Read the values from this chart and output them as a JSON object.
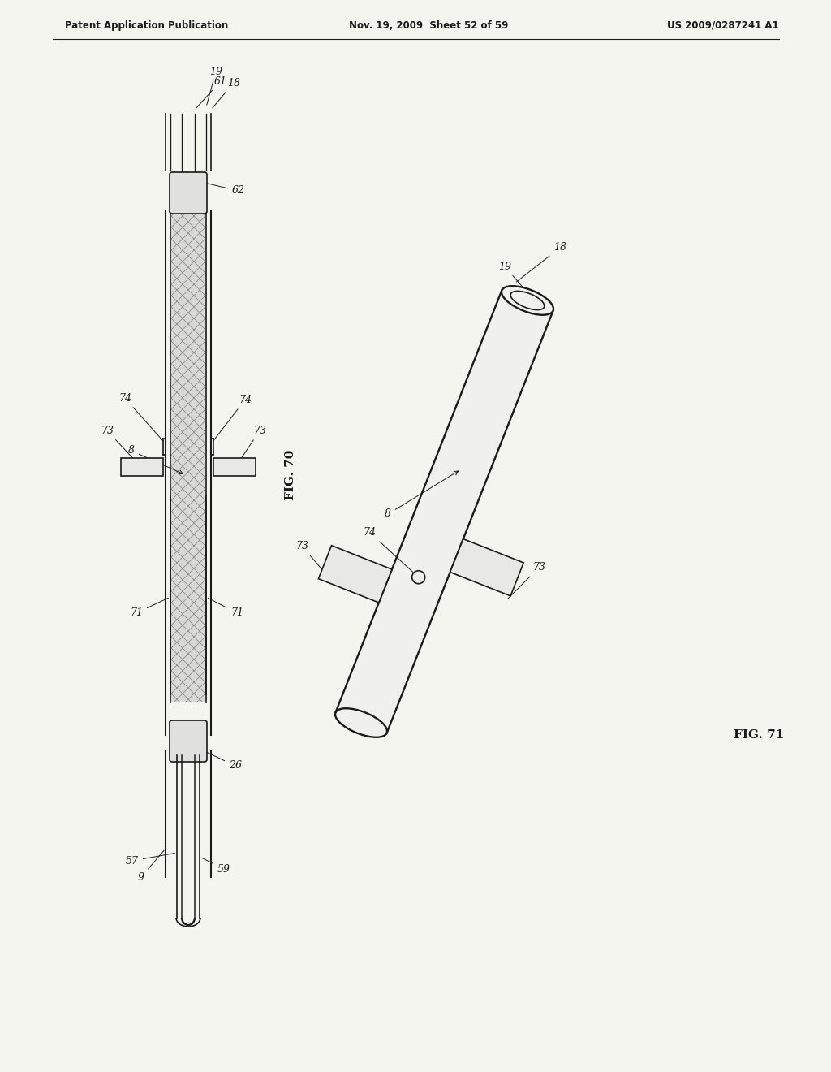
{
  "bg_color": "#f5f5f0",
  "header_left": "Patent Application Publication",
  "header_mid": "Nov. 19, 2009  Sheet 52 of 59",
  "header_right": "US 2009/0287241 A1",
  "fig70_label": "FIG. 70",
  "fig71_label": "FIG. 71",
  "line_color": "#1a1a1a",
  "line_width": 1.2
}
